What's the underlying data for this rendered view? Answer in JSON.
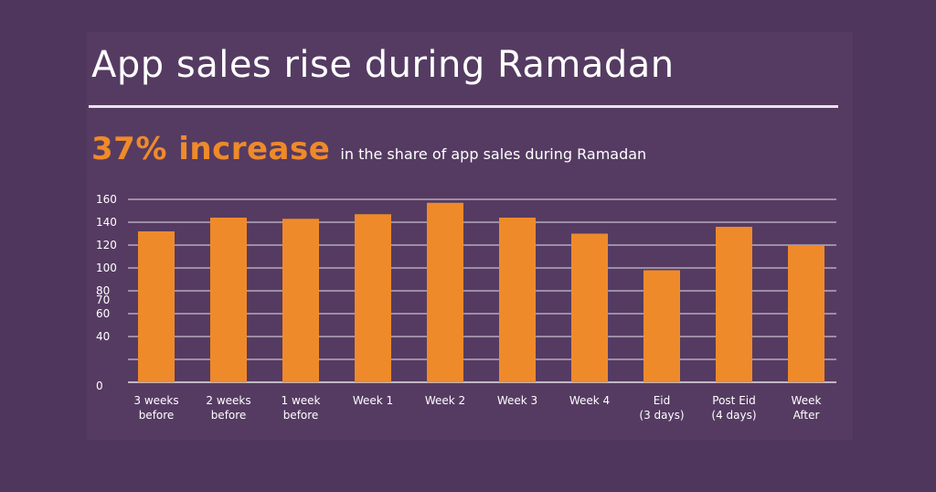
{
  "header": {
    "title": "App sales rise during Ramadan",
    "highlight": "37% increase",
    "description": "in the share of app sales during Ramadan"
  },
  "colors": {
    "background": "#4e365c",
    "bar": "#ef8a2a",
    "highlight": "#ef8a2a",
    "grid": "#ffffff",
    "text": "#ffffff"
  },
  "chart_data": {
    "type": "bar",
    "title": "",
    "xlabel": "",
    "ylabel": "",
    "categories": [
      [
        "3 weeks",
        "before"
      ],
      [
        "2 weeks",
        "before"
      ],
      [
        "1 week",
        "before"
      ],
      [
        "Week 1"
      ],
      [
        "Week 2"
      ],
      [
        "Week 3"
      ],
      [
        "Week 4"
      ],
      [
        "Eid",
        "(3 days)"
      ],
      [
        "Post Eid",
        "(4 days)"
      ],
      [
        "Week",
        "After"
      ]
    ],
    "values": [
      132,
      144,
      143,
      147,
      157,
      144,
      130,
      98,
      136,
      120
    ],
    "ylim": [
      0,
      160
    ],
    "yticks": [
      "160",
      "140",
      "120",
      "100",
      "80",
      "70",
      "60",
      "40",
      "0"
    ],
    "grid": true
  }
}
